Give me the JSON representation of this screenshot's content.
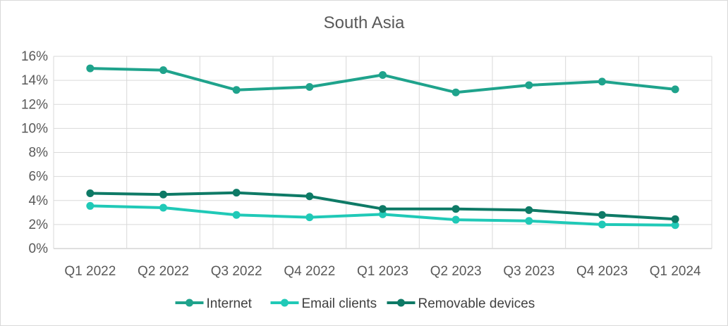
{
  "chart_data": {
    "type": "line",
    "title": "South Asia",
    "xlabel": "",
    "ylabel": "",
    "categories": [
      "Q1 2022",
      "Q2 2022",
      "Q3 2022",
      "Q4 2022",
      "Q1 2023",
      "Q2 2023",
      "Q3 2023",
      "Q4 2023",
      "Q1 2024"
    ],
    "ylim": [
      0,
      16
    ],
    "yticks": [
      0,
      2,
      4,
      6,
      8,
      10,
      12,
      14,
      16
    ],
    "ytick_labels": [
      "0%",
      "2%",
      "4%",
      "6%",
      "8%",
      "10%",
      "12%",
      "14%",
      "16%"
    ],
    "grid": true,
    "legend_position": "bottom",
    "series": [
      {
        "name": "Internet",
        "color": "#1fa38c",
        "values": [
          15.0,
          14.85,
          13.2,
          13.45,
          14.45,
          13.0,
          13.6,
          13.9,
          13.25
        ]
      },
      {
        "name": "Email clients",
        "color": "#20c9b7",
        "values": [
          3.55,
          3.4,
          2.8,
          2.6,
          2.85,
          2.4,
          2.3,
          2.0,
          1.95
        ]
      },
      {
        "name": "Removable devices",
        "color": "#0e7a66",
        "values": [
          4.6,
          4.5,
          4.65,
          4.35,
          3.3,
          3.3,
          3.2,
          2.8,
          2.45
        ]
      }
    ]
  }
}
